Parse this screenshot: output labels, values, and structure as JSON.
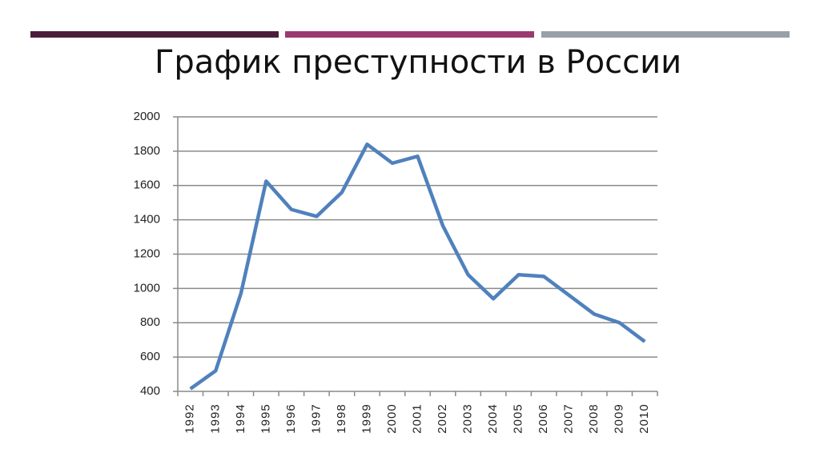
{
  "chart_data": {
    "type": "line",
    "title": "График преступности в России",
    "categories": [
      "1992",
      "1993",
      "1994",
      "1995",
      "1996",
      "1997",
      "1998",
      "1999",
      "2000",
      "2001",
      "2002",
      "2003",
      "2004",
      "2005",
      "2006",
      "2007",
      "2008",
      "2009",
      "2010"
    ],
    "series": [
      {
        "color": "#4f81bd",
        "values": [
          415,
          520,
          970,
          1625,
          1460,
          1420,
          1560,
          1840,
          1730,
          1770,
          1365,
          1080,
          940,
          1080,
          1070,
          960,
          850,
          800,
          690
        ]
      }
    ],
    "ylim": [
      400,
      2000
    ],
    "yticks": [
      400,
      600,
      800,
      1000,
      1200,
      1400,
      1600,
      1800,
      2000
    ],
    "grid": true
  }
}
